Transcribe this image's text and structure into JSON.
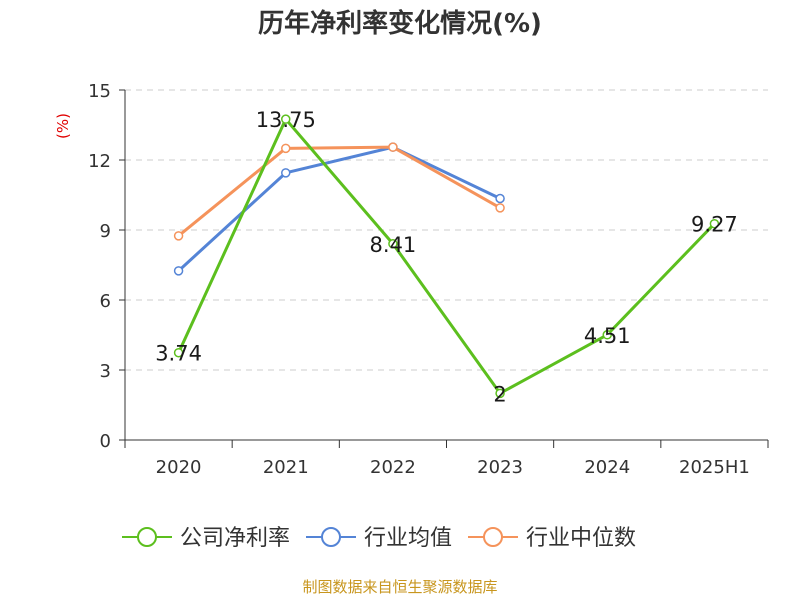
{
  "title": "历年净利率变化情况(%)",
  "source": "制图数据来自恒生聚源数据库",
  "chart_data": {
    "type": "line",
    "title": "历年净利率变化情况(%)",
    "ylabel": "(%)",
    "xlabel": "",
    "categories": [
      "2020",
      "2021",
      "2022",
      "2023",
      "2024",
      "2025H1"
    ],
    "ylim": [
      0,
      15
    ],
    "yticks": [
      0,
      3,
      6,
      9,
      12,
      15
    ],
    "grid": true,
    "legend_position": "bottom",
    "series": [
      {
        "name": "公司净利率",
        "color": "#5cbf1e",
        "values": [
          3.74,
          13.75,
          8.41,
          2,
          4.51,
          9.27
        ],
        "labels": [
          "3.74",
          "13.75",
          "8.41",
          "2",
          "4.51",
          "9.27"
        ]
      },
      {
        "name": "行业均值",
        "color": "#5484d6",
        "values": [
          7.25,
          11.45,
          12.55,
          10.35,
          null,
          null
        ]
      },
      {
        "name": "行业中位数",
        "color": "#f5935b",
        "values": [
          8.75,
          12.5,
          12.55,
          9.95,
          null,
          null
        ]
      }
    ]
  }
}
